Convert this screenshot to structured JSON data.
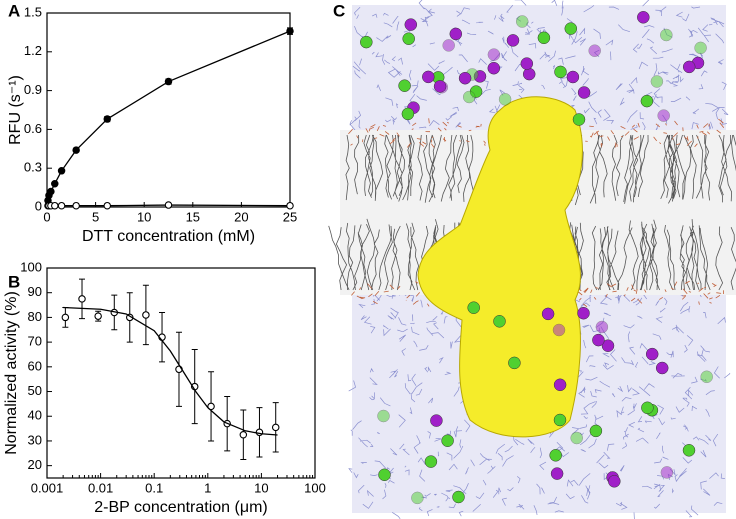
{
  "chart_data": [
    {
      "type": "line",
      "label": "A",
      "xlabel": "DTT concentration (mM)",
      "ylabel": "RFU (s⁻¹)",
      "xlim": [
        0,
        25
      ],
      "xticks": [
        0,
        5,
        10,
        15,
        20,
        25
      ],
      "ylim": [
        0,
        1.5
      ],
      "yticks": [
        0,
        0.3,
        0.6,
        0.9,
        1.2,
        1.5
      ],
      "series": [
        {
          "color": "#000000",
          "marker": "filled",
          "x": [
            0.1,
            0.2,
            0.4,
            0.8,
            1.5,
            3,
            6.2,
            12.5,
            25
          ],
          "values": [
            0.05,
            0.09,
            0.12,
            0.18,
            0.28,
            0.44,
            0.68,
            0.97,
            1.36
          ],
          "errors": [
            0.01,
            0.01,
            0.01,
            0.01,
            0.01,
            0.015,
            0.02,
            0.02,
            0.025
          ]
        },
        {
          "color": "#000000",
          "marker": "open",
          "x": [
            0.1,
            0.2,
            0.4,
            0.8,
            1.5,
            3,
            6.2,
            12.5,
            25
          ],
          "values": [
            0.01,
            0.01,
            0.01,
            0.01,
            0.01,
            0.01,
            0.01,
            0.015,
            0.01
          ]
        }
      ]
    },
    {
      "type": "line",
      "label": "B",
      "xlabel": "2-BP concentration (μm)",
      "ylabel": "Normalized activity (%)",
      "xscale": "log",
      "xlim": [
        0.001,
        100
      ],
      "xticks": [
        0.001,
        0.01,
        0.1,
        1,
        10,
        100
      ],
      "ylim": [
        15,
        100
      ],
      "yticks": [
        20,
        30,
        40,
        50,
        60,
        70,
        80,
        90,
        100
      ],
      "series": [
        {
          "color": "#000000",
          "marker": "open",
          "connect": false,
          "x": [
            0.0022,
            0.0045,
            0.009,
            0.018,
            0.035,
            0.07,
            0.14,
            0.29,
            0.57,
            1.15,
            2.3,
            4.6,
            9.2,
            18.5
          ],
          "values": [
            80,
            87.5,
            80.5,
            82,
            80,
            81,
            72,
            59,
            52,
            44,
            37,
            32.5,
            33.5,
            35.5
          ],
          "errors": [
            4,
            8,
            2,
            7,
            10,
            12,
            10,
            15,
            15,
            14,
            11,
            10,
            10,
            10
          ]
        },
        {
          "color": "#000000",
          "marker": "none",
          "x": [
            0.002,
            0.01,
            0.03,
            0.1,
            0.2,
            0.35,
            0.6,
            1,
            2,
            5,
            10,
            20
          ],
          "values": [
            84,
            83.3,
            81.4,
            74.6,
            66.4,
            58,
            49.9,
            43.5,
            37.7,
            34.1,
            32.9,
            32.4
          ]
        }
      ]
    }
  ],
  "panel_c": {
    "label": "C"
  }
}
